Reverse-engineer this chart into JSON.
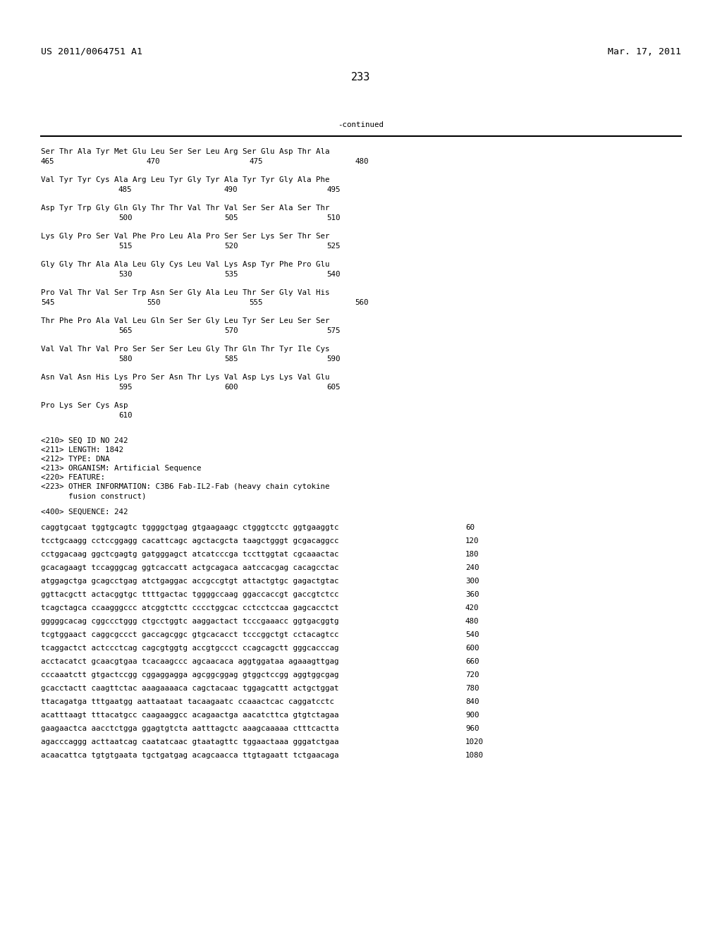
{
  "header_left": "US 2011/0064751 A1",
  "header_right": "Mar. 17, 2011",
  "page_number": "233",
  "continued_label": "-continued",
  "background_color": "#ffffff",
  "text_color": "#000000",
  "font_size_header": 9.5,
  "font_size_body": 7.8,
  "font_size_page": 11,
  "protein_groups": [
    {
      "seq": "Ser Thr Ala Tyr Met Glu Leu Ser Ser Leu Arg Ser Glu Asp Thr Ala",
      "nums": [
        [
          "465",
          0
        ],
        [
          "470",
          150
        ],
        [
          "475",
          295
        ],
        [
          "480",
          445
        ]
      ]
    },
    {
      "seq": "Val Tyr Tyr Cys Ala Arg Leu Tyr Gly Tyr Ala Tyr Tyr Gly Ala Phe",
      "nums": [
        [
          "485",
          110
        ],
        [
          "490",
          260
        ],
        [
          "495",
          405
        ]
      ]
    },
    {
      "seq": "Asp Tyr Trp Gly Gln Gly Thr Thr Val Thr Val Ser Ser Ala Ser Thr",
      "nums": [
        [
          "500",
          110
        ],
        [
          "505",
          260
        ],
        [
          "510",
          405
        ]
      ]
    },
    {
      "seq": "Lys Gly Pro Ser Val Phe Pro Leu Ala Pro Ser Ser Lys Ser Thr Ser",
      "nums": [
        [
          "515",
          110
        ],
        [
          "520",
          260
        ],
        [
          "525",
          405
        ]
      ]
    },
    {
      "seq": "Gly Gly Thr Ala Ala Leu Gly Cys Leu Val Lys Asp Tyr Phe Pro Glu",
      "nums": [
        [
          "530",
          110
        ],
        [
          "535",
          260
        ],
        [
          "540",
          405
        ]
      ]
    },
    {
      "seq": "Pro Val Thr Val Ser Trp Asn Ser Gly Ala Leu Thr Ser Gly Val His",
      "nums": [
        [
          "545",
          0
        ],
        [
          "550",
          150
        ],
        [
          "555",
          295
        ],
        [
          "560",
          445
        ]
      ]
    },
    {
      "seq": "Thr Phe Pro Ala Val Leu Gln Ser Ser Gly Leu Tyr Ser Leu Ser Ser",
      "nums": [
        [
          "565",
          110
        ],
        [
          "570",
          260
        ],
        [
          "575",
          405
        ]
      ]
    },
    {
      "seq": "Val Val Thr Val Pro Ser Ser Ser Leu Gly Thr Gln Thr Tyr Ile Cys",
      "nums": [
        [
          "580",
          110
        ],
        [
          "585",
          260
        ],
        [
          "590",
          405
        ]
      ]
    },
    {
      "seq": "Asn Val Asn His Lys Pro Ser Asn Thr Lys Val Asp Lys Lys Val Glu",
      "nums": [
        [
          "595",
          110
        ],
        [
          "600",
          260
        ],
        [
          "605",
          405
        ]
      ]
    },
    {
      "seq": "Pro Lys Ser Cys Asp",
      "nums": [
        [
          "610",
          110
        ]
      ]
    }
  ],
  "seq_info": [
    "<210> SEQ ID NO 242",
    "<211> LENGTH: 1842",
    "<212> TYPE: DNA",
    "<213> ORGANISM: Artificial Sequence",
    "<220> FEATURE:",
    "<223> OTHER INFORMATION: C3B6 Fab-IL2-Fab (heavy chain cytokine",
    "      fusion construct)"
  ],
  "seq400": "<400> SEQUENCE: 242",
  "dna_lines": [
    [
      "caggtgcaat tggtgcagtc tggggctgag gtgaagaagc ctgggtcctc ggtgaaggtc",
      "60"
    ],
    [
      "tcctgcaagg cctccggagg cacattcagc agctacgcta taagctgggt gcgacaggcc",
      "120"
    ],
    [
      "cctggacaag ggctcgagtg gatgggagct atcatcccga tccttggtat cgcaaactac",
      "180"
    ],
    [
      "gcacagaagt tccagggcag ggtcaccatt actgcagaca aatccacgag cacagcctac",
      "240"
    ],
    [
      "atggagctga gcagcctgag atctgaggac accgccgtgt attactgtgc gagactgtac",
      "300"
    ],
    [
      "ggttacgctt actacggtgc ttttgactac tggggccaag ggaccaccgt gaccgtctcc",
      "360"
    ],
    [
      "tcagctagca ccaagggccc atcggtcttc cccctggcac cctcctccaa gagcacctct",
      "420"
    ],
    [
      "gggggcacag cggccctggg ctgcctggtc aaggactact tcccgaaacc ggtgacggtg",
      "480"
    ],
    [
      "tcgtggaact caggcgccct gaccagcggc gtgcacacct tcccggctgt cctacagtcc",
      "540"
    ],
    [
      "tcaggactct actccctcag cagcgtggtg accgtgccct ccagcagctt gggcacccag",
      "600"
    ],
    [
      "acctacatct gcaacgtgaa tcacaagccc agcaacaca aggtggataa agaaagttgag",
      "660"
    ],
    [
      "cccaaatctt gtgactccgg cggaggagga agcggcggag gtggctccgg aggtggcgag",
      "720"
    ],
    [
      "gcacctactt caagttctac aaagaaaaca cagctacaac tggagcattt actgctggat",
      "780"
    ],
    [
      "ttacagatga tttgaatgg aattaataat tacaagaatc ccaaactcac caggatcctc",
      "840"
    ],
    [
      "acatttaagt tttacatgcc caagaaggcc acagaactga aacatcttca gtgtctagaa",
      "900"
    ],
    [
      "gaagaactca aacctctgga ggagtgtcta aatttagctc aaagcaaaaa ctttcactta",
      "960"
    ],
    [
      "agacccaggg acttaatcag caatatcaac gtaatagttc tggaactaaa gggatctgaa",
      "1020"
    ],
    [
      "acaacattca tgtgtgaata tgctgatgag acagcaacca ttgtagaatt tctgaacaga",
      "1080"
    ]
  ]
}
